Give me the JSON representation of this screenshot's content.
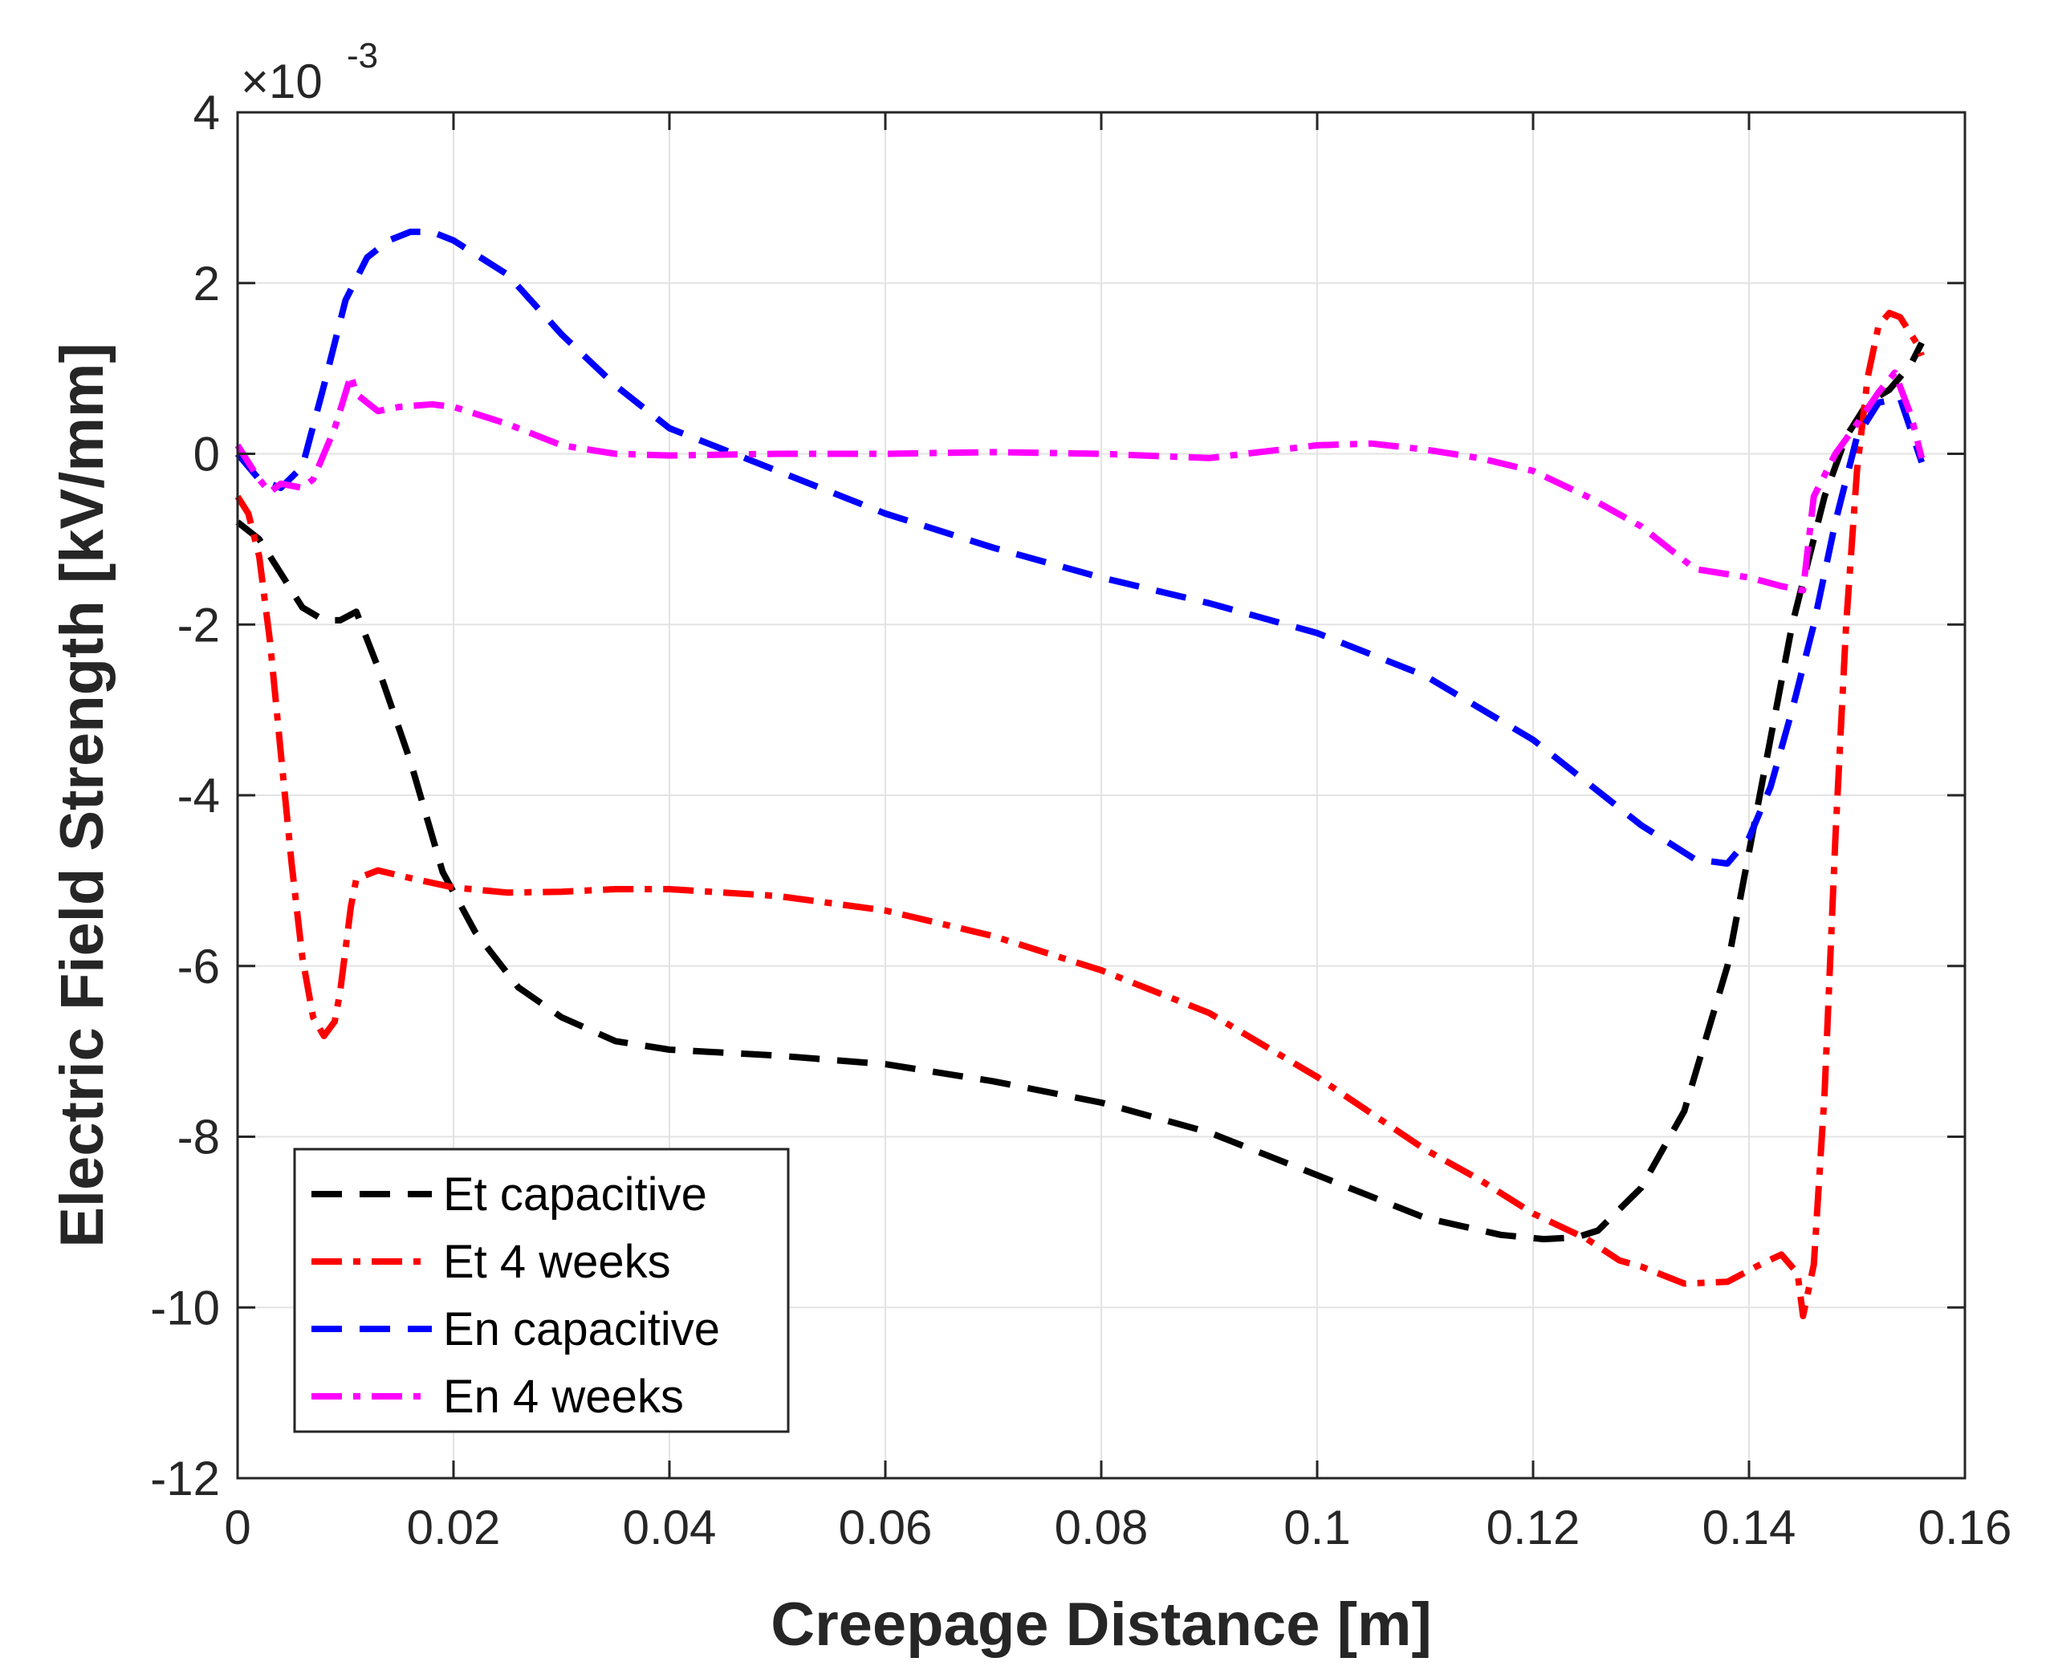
{
  "chart_data": {
    "type": "line",
    "title": "",
    "xlabel": "Creepage Distance [m]",
    "ylabel": "Electric Field Strength [kV/mm]",
    "xlim": [
      0,
      0.16
    ],
    "ylim": [
      -12,
      4
    ],
    "y_exponent_base": "×10",
    "y_exponent_power": "-3",
    "x_ticks": [
      0,
      0.02,
      0.04,
      0.06,
      0.08,
      0.1,
      0.12,
      0.14,
      0.16
    ],
    "x_tick_labels": [
      "0",
      "0.02",
      "0.04",
      "0.06",
      "0.08",
      "0.1",
      "0.12",
      "0.14",
      "0.16"
    ],
    "y_ticks": [
      -12,
      -10,
      -8,
      -6,
      -4,
      -2,
      0,
      2,
      4
    ],
    "y_tick_labels": [
      "-12",
      "-10",
      "-8",
      "-6",
      "-4",
      "-2",
      "0",
      "2",
      "4"
    ],
    "grid": true,
    "legend_position": "bottom-left",
    "series": [
      {
        "name": "Et capacitive",
        "color": "#000000",
        "dash": "dashed",
        "x": [
          0,
          0.002,
          0.004,
          0.006,
          0.008,
          0.0095,
          0.011,
          0.013,
          0.016,
          0.019,
          0.022,
          0.026,
          0.03,
          0.035,
          0.04,
          0.05,
          0.06,
          0.07,
          0.08,
          0.09,
          0.1,
          0.11,
          0.117,
          0.121,
          0.124,
          0.126,
          0.13,
          0.134,
          0.138,
          0.141,
          0.144,
          0.147,
          0.149,
          0.151,
          0.153,
          0.155,
          0.156
        ],
        "y": [
          -0.8,
          -1.0,
          -1.4,
          -1.8,
          -1.95,
          -1.95,
          -1.85,
          -2.5,
          -3.6,
          -4.9,
          -5.6,
          -6.25,
          -6.6,
          -6.88,
          -6.98,
          -7.05,
          -7.15,
          -7.35,
          -7.6,
          -7.95,
          -8.45,
          -8.95,
          -9.15,
          -9.2,
          -9.18,
          -9.1,
          -8.6,
          -7.7,
          -6.0,
          -4.0,
          -2.0,
          -0.5,
          0.2,
          0.6,
          0.75,
          1.05,
          1.3
        ]
      },
      {
        "name": "Et 4 weeks",
        "color": "#ff0000",
        "dash": "dashdot",
        "x": [
          0,
          0.001,
          0.002,
          0.003,
          0.004,
          0.005,
          0.006,
          0.007,
          0.008,
          0.009,
          0.0095,
          0.01,
          0.0105,
          0.011,
          0.013,
          0.016,
          0.02,
          0.025,
          0.03,
          0.035,
          0.04,
          0.05,
          0.06,
          0.07,
          0.08,
          0.09,
          0.1,
          0.11,
          0.115,
          0.12,
          0.125,
          0.128,
          0.13,
          0.134,
          0.138,
          0.141,
          0.143,
          0.1445,
          0.145,
          0.146,
          0.147,
          0.148,
          0.149,
          0.15,
          0.151,
          0.152,
          0.153,
          0.154,
          0.1555,
          0.156
        ],
        "y": [
          -0.5,
          -0.7,
          -1.2,
          -2.2,
          -3.5,
          -4.8,
          -5.9,
          -6.6,
          -6.82,
          -6.65,
          -6.3,
          -5.8,
          -5.3,
          -4.98,
          -4.88,
          -4.97,
          -5.08,
          -5.14,
          -5.13,
          -5.1,
          -5.1,
          -5.18,
          -5.35,
          -5.65,
          -6.05,
          -6.55,
          -7.3,
          -8.15,
          -8.5,
          -8.9,
          -9.2,
          -9.45,
          -9.52,
          -9.72,
          -9.7,
          -9.5,
          -9.38,
          -9.6,
          -10.1,
          -9.5,
          -7.5,
          -4.5,
          -2.0,
          -0.2,
          0.9,
          1.5,
          1.65,
          1.6,
          1.3,
          1.15
        ]
      },
      {
        "name": "En capacitive",
        "color": "#0000ff",
        "dash": "dashed",
        "x": [
          0,
          0.002,
          0.004,
          0.006,
          0.008,
          0.01,
          0.012,
          0.014,
          0.016,
          0.018,
          0.02,
          0.025,
          0.03,
          0.035,
          0.04,
          0.05,
          0.06,
          0.07,
          0.08,
          0.09,
          0.1,
          0.11,
          0.12,
          0.13,
          0.135,
          0.138,
          0.14,
          0.142,
          0.144,
          0.146,
          0.148,
          0.15,
          0.152,
          0.154,
          0.156
        ],
        "y": [
          0,
          -0.3,
          -0.4,
          -0.15,
          0.8,
          1.8,
          2.3,
          2.5,
          2.6,
          2.6,
          2.5,
          2.1,
          1.4,
          0.8,
          0.3,
          -0.2,
          -0.7,
          -1.1,
          -1.45,
          -1.75,
          -2.1,
          -2.6,
          -3.35,
          -4.35,
          -4.75,
          -4.8,
          -4.5,
          -3.9,
          -3.0,
          -2.0,
          -0.8,
          0.2,
          0.6,
          0.65,
          -0.1
        ]
      },
      {
        "name": "En 4 weeks",
        "color": "#ff00ff",
        "dash": "dashdot",
        "x": [
          0,
          0.002,
          0.003,
          0.004,
          0.006,
          0.007,
          0.008,
          0.009,
          0.0105,
          0.011,
          0.013,
          0.015,
          0.018,
          0.02,
          0.025,
          0.03,
          0.035,
          0.04,
          0.05,
          0.06,
          0.07,
          0.08,
          0.09,
          0.1,
          0.105,
          0.11,
          0.115,
          0.12,
          0.125,
          0.13,
          0.135,
          0.14,
          0.143,
          0.145,
          0.146,
          0.148,
          0.15,
          0.152,
          0.1535,
          0.155,
          0.156
        ],
        "y": [
          0.1,
          -0.3,
          -0.45,
          -0.35,
          -0.4,
          -0.3,
          0.0,
          0.3,
          0.92,
          0.7,
          0.5,
          0.55,
          0.58,
          0.55,
          0.35,
          0.1,
          0.0,
          -0.02,
          0.0,
          0.0,
          0.02,
          0.0,
          -0.05,
          0.1,
          0.12,
          0.05,
          -0.05,
          -0.2,
          -0.5,
          -0.85,
          -1.35,
          -1.45,
          -1.55,
          -1.6,
          -0.5,
          0.0,
          0.35,
          0.72,
          0.95,
          0.45,
          -0.05
        ]
      }
    ]
  }
}
